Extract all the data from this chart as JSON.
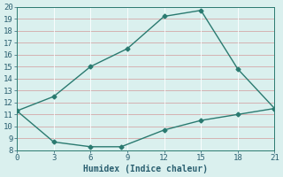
{
  "line1_x": [
    0,
    3,
    6,
    9,
    12,
    15,
    18,
    21
  ],
  "line1_y": [
    11.3,
    12.5,
    15.0,
    16.5,
    19.2,
    19.7,
    14.8,
    11.5
  ],
  "line2_x": [
    0,
    3,
    6,
    8.5,
    12,
    15,
    18,
    21
  ],
  "line2_y": [
    11.3,
    8.7,
    8.3,
    8.3,
    9.7,
    10.5,
    11.0,
    11.5
  ],
  "line_color": "#2a7a70",
  "bg_color": "#daf0ee",
  "plot_bg_color": "#daf0ee",
  "grid_color_major": "#e8c0c0",
  "grid_color_minor": "#ffffff",
  "xlabel": "Humidex (Indice chaleur)",
  "xlim": [
    0,
    21
  ],
  "ylim": [
    8,
    20
  ],
  "xticks": [
    0,
    3,
    6,
    9,
    12,
    15,
    18,
    21
  ],
  "yticks": [
    8,
    9,
    10,
    11,
    12,
    13,
    14,
    15,
    16,
    17,
    18,
    19,
    20
  ],
  "font_color": "#2a5f70",
  "label_fontsize": 7,
  "tick_fontsize": 6.5
}
